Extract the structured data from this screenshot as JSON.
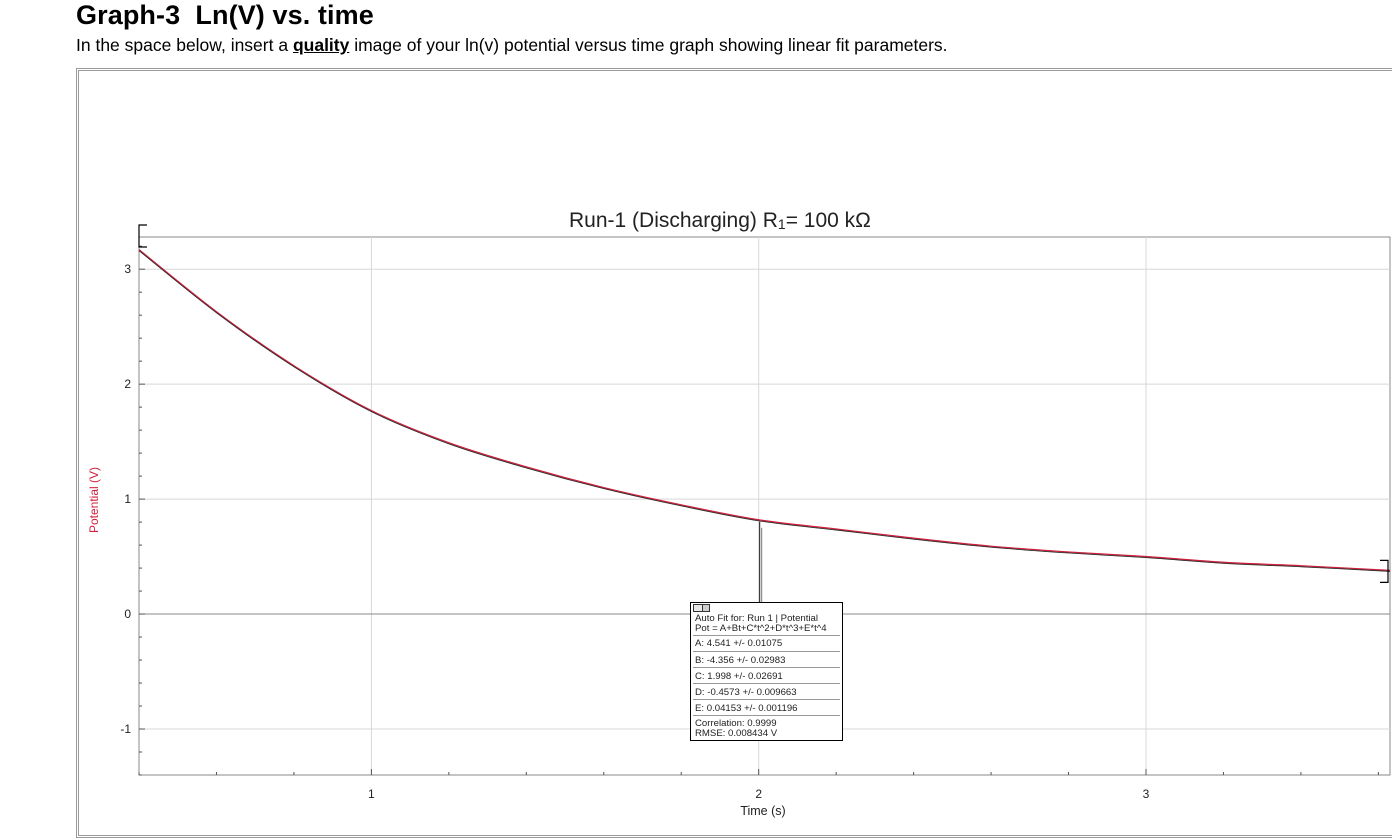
{
  "document": {
    "title": "Graph-3  Ln(V) vs. time",
    "instruction_before": "In the space below, insert a ",
    "instruction_emph": "quality",
    "instruction_after": " image of your ln(v) potential versus time graph showing linear fit parameters."
  },
  "chart_data": {
    "type": "line",
    "title": "Run-1 (Discharging) R",
    "title_subscript": "1",
    "title_suffix": "= 100 kΩ",
    "xlabel": "Time (s)",
    "ylabel": "Potential (V)",
    "xlim": [
      0.4,
      3.63
    ],
    "ylim": [
      -1.4,
      3.28
    ],
    "xticks": [
      1,
      2,
      3
    ],
    "yticks": [
      -1,
      0,
      1,
      2,
      3
    ],
    "grid": true,
    "series": [
      {
        "values_note": "",
        "color": "#d21f3c",
        "x": [
          0.4,
          0.6,
          0.8,
          1.0,
          1.2,
          1.4,
          1.6,
          1.8,
          2.0,
          2.2,
          2.4,
          2.6,
          2.8,
          3.0,
          3.2,
          3.4,
          3.63
        ],
        "y": [
          3.17,
          2.63,
          2.16,
          1.77,
          1.49,
          1.28,
          1.1,
          0.95,
          0.82,
          0.74,
          0.66,
          0.59,
          0.54,
          0.5,
          0.45,
          0.42,
          0.38
        ]
      }
    ],
    "fit_line_color": "#2b2b2b",
    "cursor_x": 2.0,
    "bracket_colors": "#000000"
  },
  "fit_box": {
    "header": "Auto Fit for: Run 1 | Potential",
    "equation": "Pot = A+Bt+C*t^2+D*t^3+E*t^4",
    "params": [
      "A: 4.541 +/- 0.01075",
      "B: -4.356 +/- 0.02983",
      "C: 1.998 +/- 0.02691",
      "D: -0.4573 +/- 0.009663",
      "E: 0.04153 +/- 0.001196"
    ],
    "correlation": "Correlation: 0.9999",
    "rmse": "RMSE: 0.008434 V"
  }
}
